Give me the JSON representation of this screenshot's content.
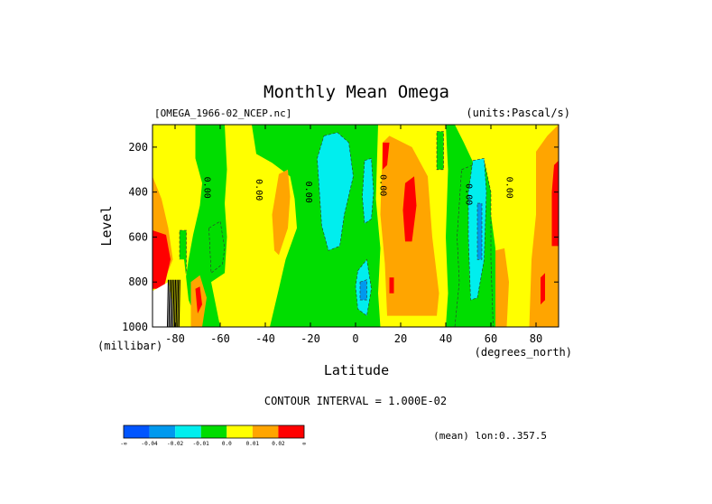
{
  "chart_data": {
    "type": "heatmap",
    "title": "Monthly Mean Omega",
    "dataset_label": "[OMEGA_1966-02_NCEP.nc]",
    "units_label": "(units:Pascal/s)",
    "xlabel": "Latitude",
    "x_units": "(degrees_north)",
    "ylabel": "Level",
    "y_units": "(millibar)",
    "xlim": [
      -90,
      90
    ],
    "ylim": [
      1000,
      100
    ],
    "x_ticks": [
      -80,
      -60,
      -40,
      -20,
      0,
      20,
      40,
      60,
      80
    ],
    "x_tick_labels": [
      "-80",
      "-60",
      "-40",
      "-20",
      "0",
      "20",
      "40",
      "60",
      "80"
    ],
    "y_ticks": [
      200,
      400,
      600,
      800,
      1000
    ],
    "y_tick_labels": [
      "200",
      "400",
      "600",
      "800",
      "1000"
    ],
    "contour_interval_text": "CONTOUR INTERVAL = 1.000E-02",
    "contour_labels": [
      {
        "lat": -67,
        "level": 380,
        "text": "0.00"
      },
      {
        "lat": -44,
        "level": 390,
        "text": "0.00"
      },
      {
        "lat": -22,
        "level": 400,
        "text": "0.00"
      },
      {
        "lat": 11,
        "level": 370,
        "text": "0.00"
      },
      {
        "lat": 49,
        "level": 410,
        "text": "0.00"
      },
      {
        "lat": 67,
        "level": 380,
        "text": "0.00"
      }
    ],
    "colorbar": {
      "colors": [
        "#0055ff",
        "#0099ee",
        "#00eeee",
        "#00dd00",
        "#ffff00",
        "#ffa500",
        "#ff0000"
      ],
      "tick_labels": [
        "-∞",
        "-0.04",
        "-0.02",
        "-0.01",
        "0.0",
        "0.01",
        "0.02",
        "∞"
      ]
    },
    "footnote": "(mean) lon:0..357.5",
    "regions": [
      {
        "name": "yellow-south-high",
        "value": 0.005,
        "points": [
          [
            -90,
            100
          ],
          [
            -71,
            100
          ],
          [
            -71,
            250
          ],
          [
            -68,
            360
          ],
          [
            -69,
            460
          ],
          [
            -72,
            590
          ],
          [
            -74,
            700
          ],
          [
            -76,
            830
          ],
          [
            -72,
            930
          ],
          [
            -70,
            1000
          ],
          [
            -90,
            1000
          ]
        ]
      },
      {
        "name": "orange-south-edge",
        "value": 0.015,
        "points": [
          [
            -90,
            330
          ],
          [
            -86,
            430
          ],
          [
            -83,
            560
          ],
          [
            -81,
            700
          ],
          [
            -85,
            800
          ],
          [
            -90,
            820
          ]
        ]
      },
      {
        "name": "red-south-edge",
        "value": 0.03,
        "points": [
          [
            -90,
            570
          ],
          [
            -84,
            590
          ],
          [
            -82,
            700
          ],
          [
            -85,
            830
          ],
          [
            -90,
            830
          ]
        ]
      },
      {
        "name": "white-antarctica",
        "value": null,
        "points": [
          [
            -90,
            840
          ],
          [
            -83,
            800
          ],
          [
            -81,
            900
          ],
          [
            -81,
            1000
          ],
          [
            -90,
            1000
          ]
        ]
      },
      {
        "name": "green-patch-south",
        "value": -0.005,
        "points": [
          [
            -78,
            570
          ],
          [
            -75,
            570
          ],
          [
            -75,
            760
          ],
          [
            -78,
            760
          ]
        ]
      },
      {
        "name": "yellow-south-low",
        "value": 0.005,
        "points": [
          [
            -80,
            700
          ],
          [
            -76,
            700
          ],
          [
            -74,
            880
          ],
          [
            -77,
            1000
          ],
          [
            -80,
            1000
          ]
        ]
      },
      {
        "name": "orange-south-low",
        "value": 0.015,
        "points": [
          [
            -73,
            800
          ],
          [
            -69,
            770
          ],
          [
            -66,
            870
          ],
          [
            -68,
            1000
          ],
          [
            -73,
            1000
          ]
        ]
      },
      {
        "name": "red-south-low",
        "value": 0.03,
        "points": [
          [
            -71,
            830
          ],
          [
            -69,
            820
          ],
          [
            -68,
            900
          ],
          [
            -70,
            940
          ]
        ]
      },
      {
        "name": "yellow-40S",
        "value": 0.005,
        "points": [
          [
            -58,
            100
          ],
          [
            -46,
            100
          ],
          [
            -44,
            230
          ],
          [
            -37,
            270
          ],
          [
            -29,
            330
          ],
          [
            -27,
            430
          ],
          [
            -26,
            560
          ],
          [
            -31,
            700
          ],
          [
            -34,
            830
          ],
          [
            -38,
            1000
          ],
          [
            -60,
            1000
          ],
          [
            -62,
            900
          ],
          [
            -64,
            800
          ],
          [
            -58,
            760
          ],
          [
            -57,
            600
          ],
          [
            -58,
            450
          ],
          [
            -57,
            300
          ]
        ]
      },
      {
        "name": "orange-30S",
        "value": 0.015,
        "points": [
          [
            -34,
            320
          ],
          [
            -30,
            300
          ],
          [
            -29,
            420
          ],
          [
            -30,
            560
          ],
          [
            -34,
            680
          ],
          [
            -36,
            660
          ],
          [
            -37,
            500
          ]
        ]
      },
      {
        "name": "green-shoal-30S",
        "value": -0.005,
        "points": [
          [
            -65,
            560
          ],
          [
            -60,
            530
          ],
          [
            -58,
            650
          ],
          [
            -59,
            720
          ],
          [
            -64,
            760
          ]
        ]
      },
      {
        "name": "cyan-equator",
        "value": -0.015,
        "points": [
          [
            -14,
            150
          ],
          [
            -8,
            135
          ],
          [
            -3,
            180
          ],
          [
            -1,
            330
          ],
          [
            -5,
            500
          ],
          [
            -7,
            640
          ],
          [
            -12,
            660
          ],
          [
            -15,
            550
          ],
          [
            -16,
            400
          ],
          [
            -17,
            250
          ]
        ]
      },
      {
        "name": "cyan-patch-5N",
        "value": -0.015,
        "points": [
          [
            4,
            260
          ],
          [
            7,
            250
          ],
          [
            8,
            400
          ],
          [
            7,
            520
          ],
          [
            4,
            540
          ],
          [
            3,
            420
          ]
        ]
      },
      {
        "name": "cyan-patch-0",
        "value": -0.015,
        "points": [
          [
            1,
            750
          ],
          [
            5,
            700
          ],
          [
            7,
            830
          ],
          [
            5,
            950
          ],
          [
            1,
            920
          ],
          [
            0,
            820
          ]
        ]
      },
      {
        "name": "blue-0",
        "value": -0.025,
        "points": [
          [
            2,
            800
          ],
          [
            5,
            790
          ],
          [
            5,
            880
          ],
          [
            2,
            880
          ]
        ]
      },
      {
        "name": "yellow-10N-25N",
        "value": 0.005,
        "points": [
          [
            10,
            100
          ],
          [
            40,
            100
          ],
          [
            41,
            300
          ],
          [
            40,
            600
          ],
          [
            41,
            850
          ],
          [
            40,
            1000
          ],
          [
            11,
            1000
          ],
          [
            10,
            850
          ],
          [
            11,
            650
          ],
          [
            9,
            430
          ]
        ]
      },
      {
        "name": "orange-15N-35N",
        "value": 0.015,
        "points": [
          [
            12,
            180
          ],
          [
            15,
            150
          ],
          [
            25,
            200
          ],
          [
            32,
            330
          ],
          [
            34,
            600
          ],
          [
            37,
            850
          ],
          [
            36,
            950
          ],
          [
            14,
            950
          ],
          [
            13,
            720
          ],
          [
            11,
            500
          ]
        ]
      },
      {
        "name": "red-13N",
        "value": 0.03,
        "points": [
          [
            12,
            180
          ],
          [
            15,
            180
          ],
          [
            14,
            280
          ],
          [
            12,
            300
          ]
        ]
      },
      {
        "name": "red-25N",
        "value": 0.03,
        "points": [
          [
            22,
            360
          ],
          [
            26,
            330
          ],
          [
            27,
            460
          ],
          [
            25,
            620
          ],
          [
            22,
            620
          ],
          [
            21,
            480
          ]
        ]
      },
      {
        "name": "red-14N-low",
        "value": 0.03,
        "points": [
          [
            15,
            780
          ],
          [
            17,
            780
          ],
          [
            17,
            850
          ],
          [
            15,
            850
          ]
        ]
      },
      {
        "name": "green-37N",
        "value": -0.005,
        "points": [
          [
            36,
            130
          ],
          [
            39,
            130
          ],
          [
            39,
            300
          ],
          [
            36,
            300
          ]
        ]
      },
      {
        "name": "yellow-50N-80N",
        "value": 0.005,
        "points": [
          [
            44,
            100
          ],
          [
            90,
            100
          ],
          [
            90,
            1000
          ],
          [
            66,
            1000
          ],
          [
            62,
            850
          ],
          [
            62,
            650
          ],
          [
            60,
            500
          ],
          [
            55,
            330
          ],
          [
            48,
            180
          ]
        ]
      },
      {
        "name": "green-lobe-55N",
        "value": -0.005,
        "points": [
          [
            47,
            300
          ],
          [
            57,
            260
          ],
          [
            60,
            400
          ],
          [
            60,
            700
          ],
          [
            61,
            1000
          ],
          [
            44,
            1000
          ],
          [
            46,
            800
          ],
          [
            45,
            600
          ]
        ]
      },
      {
        "name": "cyan-55N",
        "value": -0.015,
        "points": [
          [
            52,
            260
          ],
          [
            57,
            250
          ],
          [
            58,
            400
          ],
          [
            57,
            700
          ],
          [
            54,
            870
          ],
          [
            51,
            880
          ],
          [
            50,
            600
          ],
          [
            50,
            400
          ]
        ]
      },
      {
        "name": "blue-55N",
        "value": -0.025,
        "points": [
          [
            54,
            450
          ],
          [
            56,
            450
          ],
          [
            56,
            700
          ],
          [
            54,
            700
          ]
        ]
      },
      {
        "name": "orange-65N",
        "value": 0.015,
        "points": [
          [
            62,
            660
          ],
          [
            66,
            650
          ],
          [
            68,
            800
          ],
          [
            67,
            1000
          ],
          [
            62,
            1000
          ]
        ]
      },
      {
        "name": "orange-85N",
        "value": 0.015,
        "points": [
          [
            80,
            220
          ],
          [
            85,
            150
          ],
          [
            90,
            100
          ],
          [
            90,
            1000
          ],
          [
            77,
            1000
          ],
          [
            78,
            700
          ],
          [
            80,
            500
          ]
        ]
      },
      {
        "name": "red-85N",
        "value": 0.03,
        "points": [
          [
            88,
            280
          ],
          [
            90,
            260
          ],
          [
            90,
            640
          ],
          [
            87,
            640
          ],
          [
            87,
            400
          ]
        ]
      },
      {
        "name": "red-82N-low",
        "value": 0.03,
        "points": [
          [
            82,
            780
          ],
          [
            84,
            760
          ],
          [
            84,
            880
          ],
          [
            82,
            900
          ]
        ]
      }
    ]
  }
}
